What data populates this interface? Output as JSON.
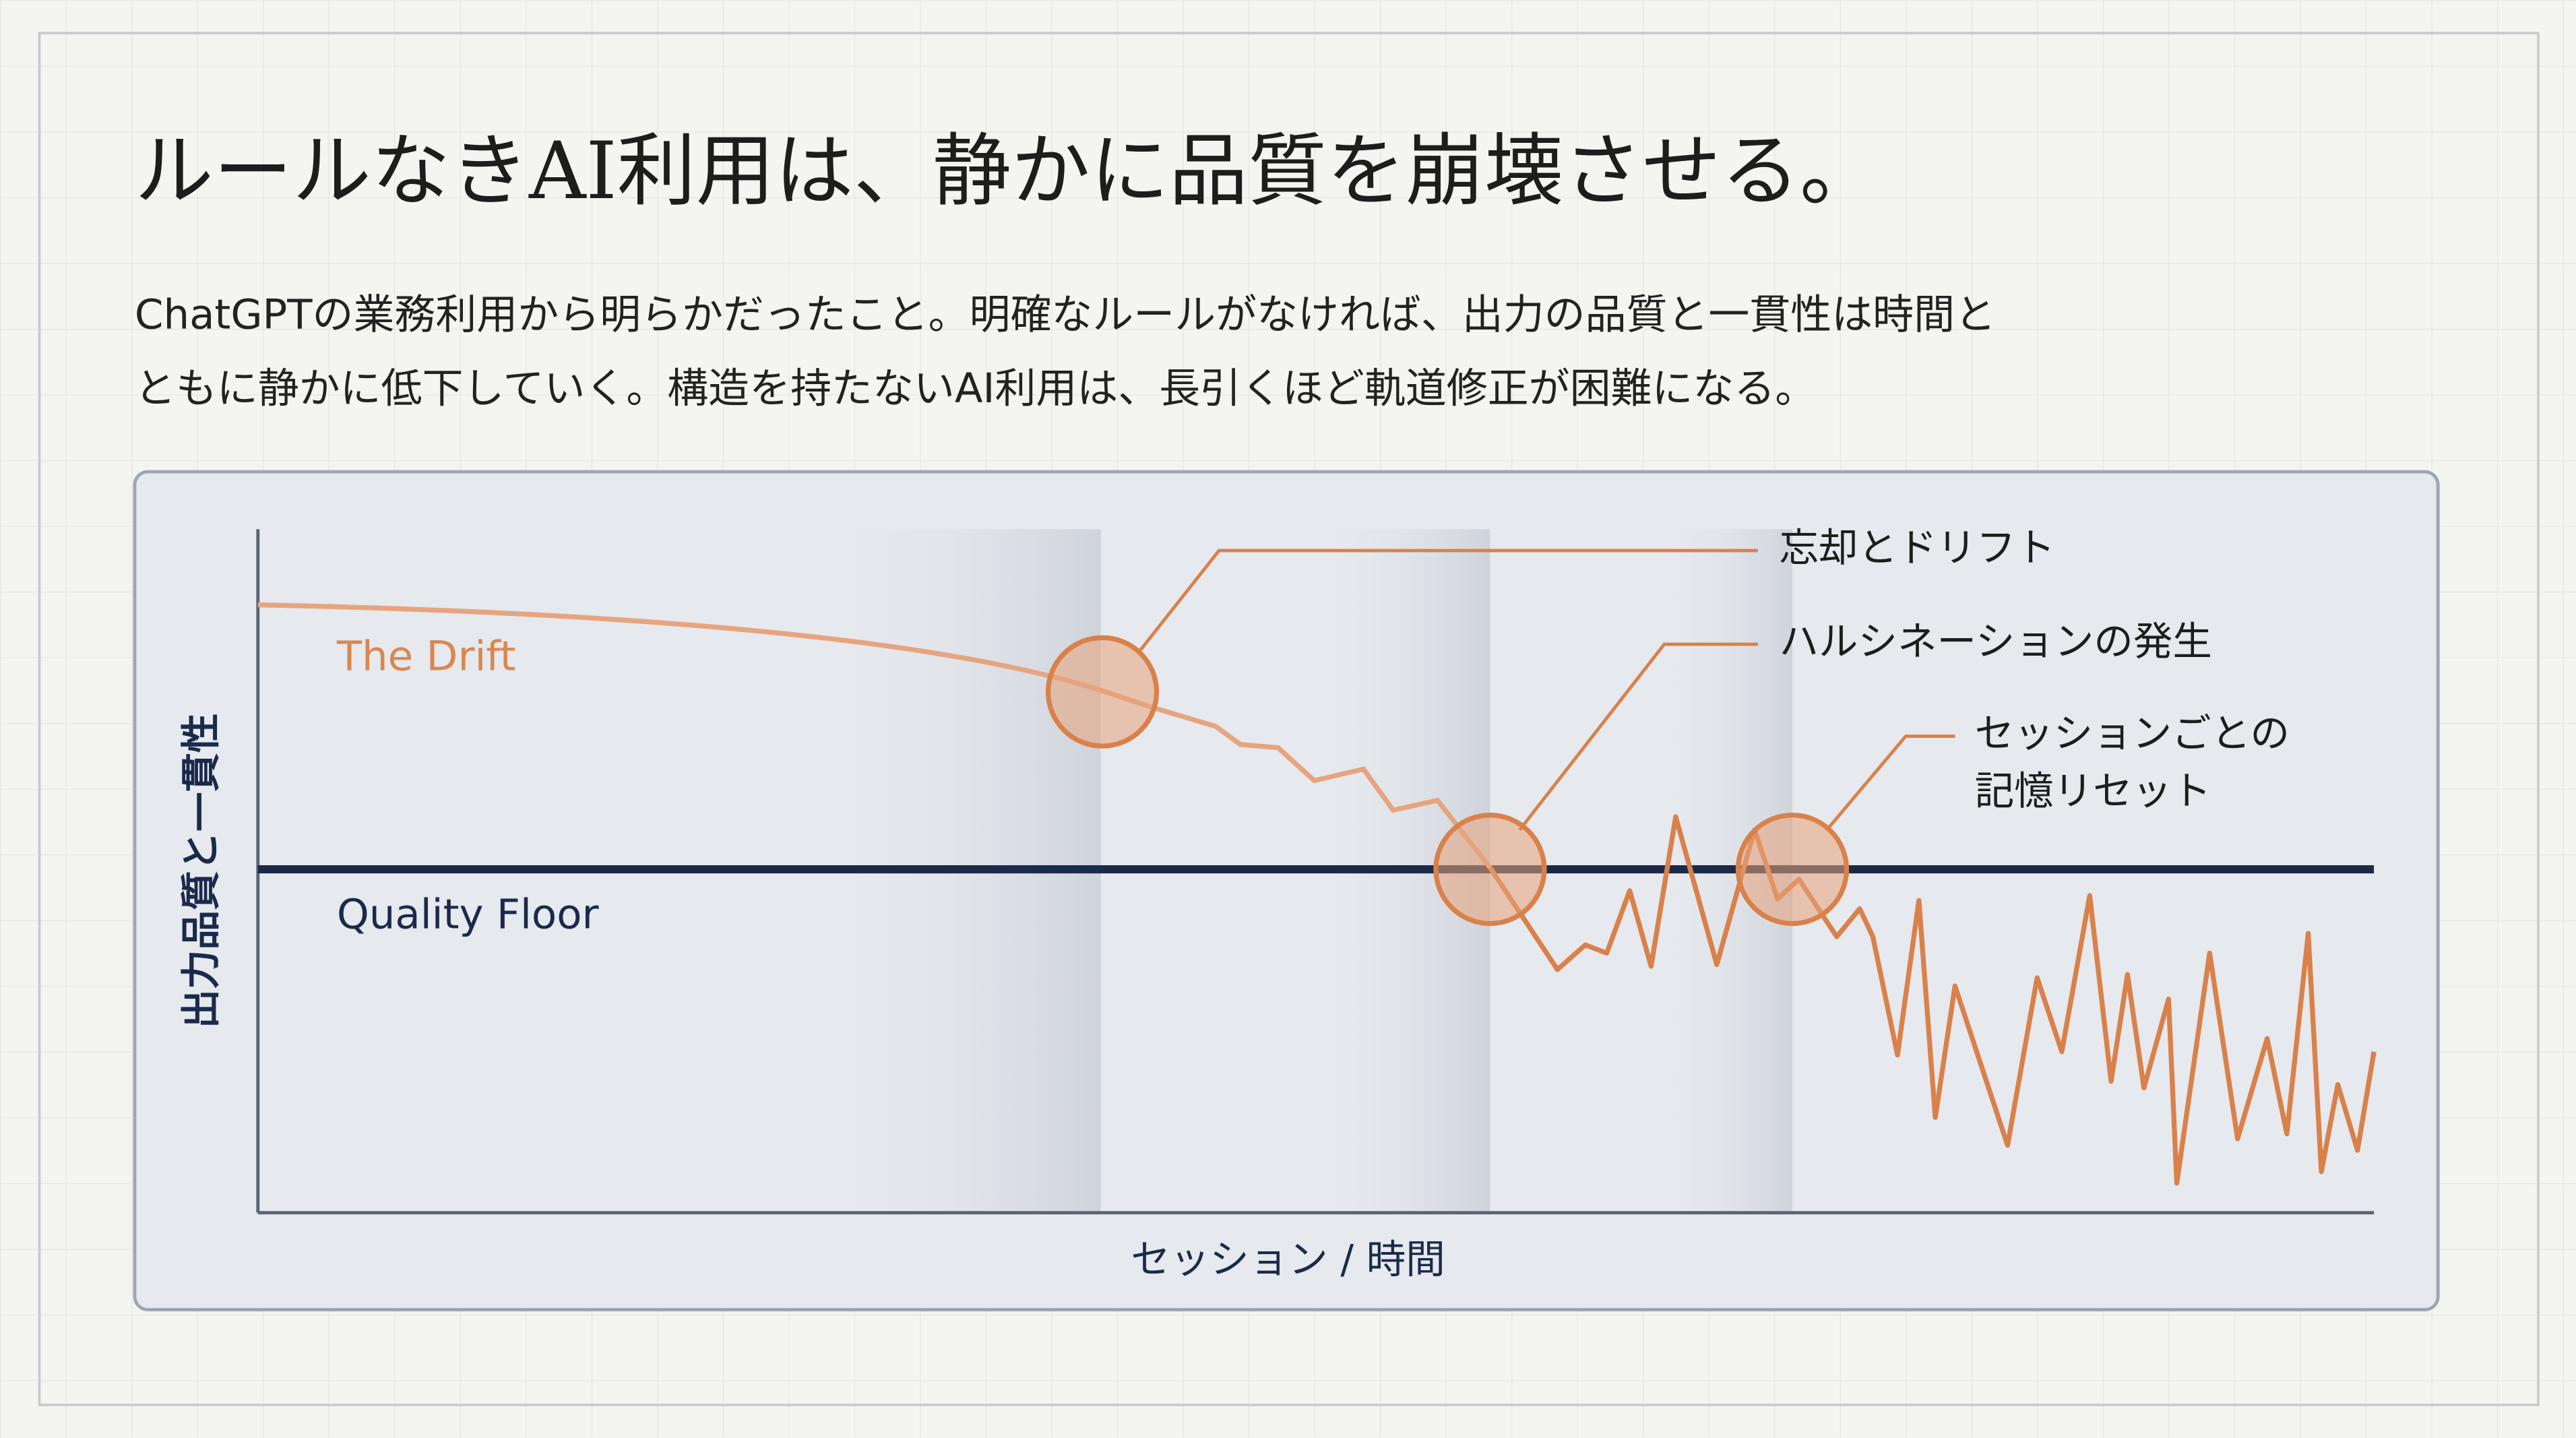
{
  "slide": {
    "title": "ルールなきAI利用は、静かに品質を崩壊させる。",
    "description": [
      "ChatGPTの業務利用から明らかだったこと。明確なルールがなければ、出力の品質と一貫性は時間と",
      "ともに静かに低下していく。構造を持たないAI利用は、長引くほど軌道修正が困難になる。"
    ],
    "chart": {
      "drift_label": "The Drift",
      "floor_label": "Quality Floor",
      "y_axis_label": "出力品質と一貫性",
      "x_axis_label": "セッション / 時間",
      "annotations": [
        [
          "忘却とドリフト"
        ],
        [
          "ハルシネーションの発生"
        ],
        [
          "セッションごとの",
          "記憶リセット"
        ]
      ]
    }
  }
}
